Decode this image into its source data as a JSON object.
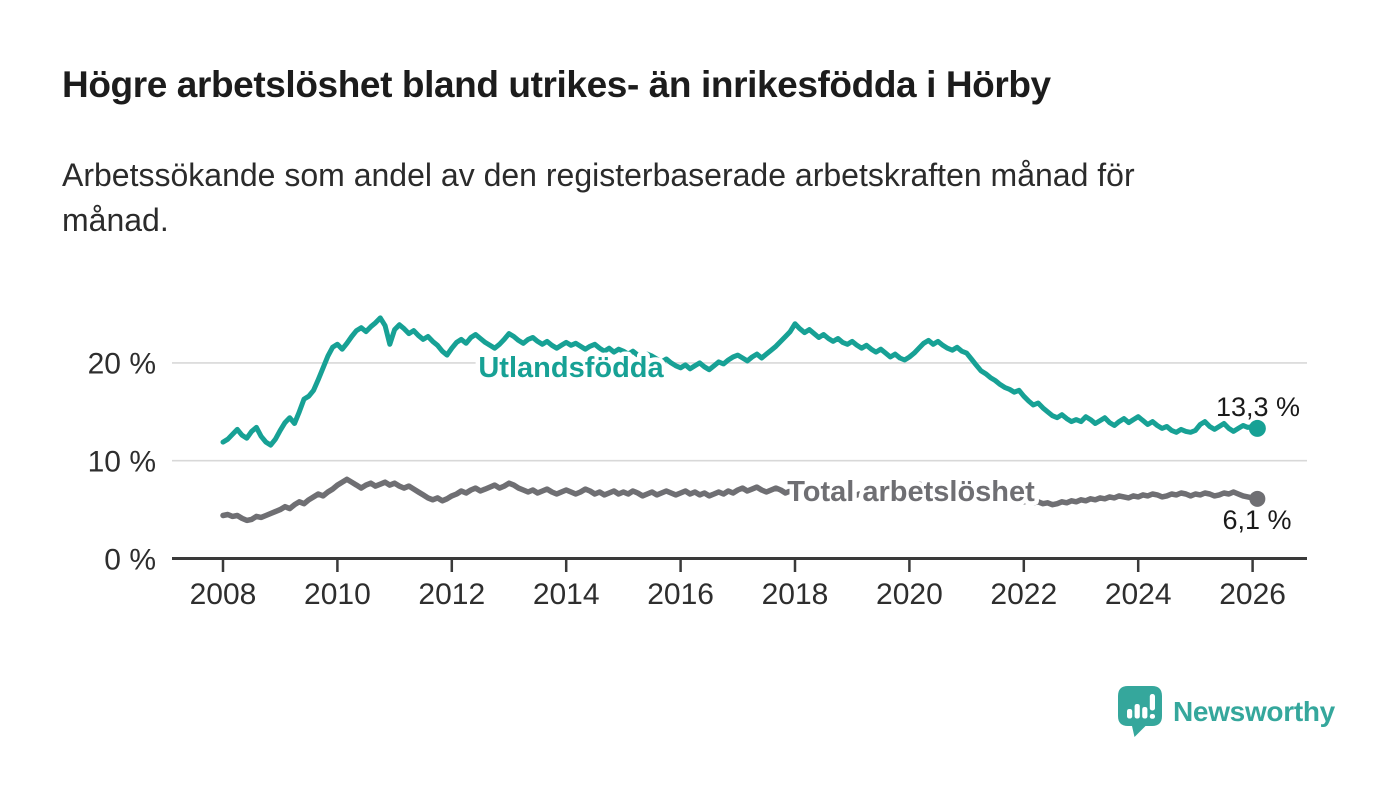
{
  "header": {
    "title": "Högre arbetslöshet bland utrikes- än inrikesfödda i Hörby",
    "subtitle_lines": [
      "Arbetssökande som andel av den registerbaserade arbetskraften månad för",
      "månad."
    ]
  },
  "chart_data": {
    "type": "line",
    "title": "Högre arbetslöshet bland utrikes- än inrikesfödda i Hörby",
    "subtitle": "Arbetssökande som andel av den registerbaserade arbetskraften månad för månad.",
    "x_unit": "month",
    "x_start": "2008-01",
    "x_end": "2026-02",
    "x_ticks": [
      2008,
      2010,
      2012,
      2014,
      2016,
      2018,
      2020,
      2022,
      2024,
      2026
    ],
    "y_ticks": [
      {
        "value": 0,
        "label": "0 %"
      },
      {
        "value": 10,
        "label": "10 %"
      },
      {
        "value": 20,
        "label": "20 %"
      }
    ],
    "ylim": [
      0,
      27.5
    ],
    "grid": "horizontal",
    "legend_position": "inline-labels",
    "colors": {
      "grid": "#d8d8d8",
      "axis": "#3a3a3a",
      "tick_text": "#2e2e2e",
      "value_label_text": "#1a1a1a",
      "halo": "#ffffff"
    },
    "series": [
      {
        "name": "Utlandsfödda",
        "color": "#17a195",
        "end_value": 13.3,
        "end_label": "13,3 %",
        "values": [
          11.9,
          12.2,
          12.7,
          13.2,
          12.6,
          12.3,
          13.0,
          13.4,
          12.5,
          11.9,
          11.6,
          12.2,
          13.1,
          13.9,
          14.4,
          13.8,
          15.0,
          16.3,
          16.6,
          17.2,
          18.3,
          19.5,
          20.7,
          21.6,
          21.9,
          21.4,
          22.0,
          22.7,
          23.3,
          23.6,
          23.2,
          23.7,
          24.1,
          24.6,
          23.8,
          21.9,
          23.4,
          23.9,
          23.5,
          23.0,
          23.3,
          22.8,
          22.4,
          22.7,
          22.2,
          21.8,
          21.2,
          20.8,
          21.5,
          22.1,
          22.4,
          22.0,
          22.6,
          22.9,
          22.5,
          22.1,
          21.8,
          21.5,
          21.9,
          22.4,
          23.0,
          22.7,
          22.3,
          22.0,
          22.4,
          22.6,
          22.2,
          21.9,
          22.2,
          21.8,
          21.5,
          21.8,
          22.1,
          21.8,
          22.0,
          21.7,
          21.4,
          21.7,
          21.9,
          21.5,
          21.2,
          21.5,
          21.1,
          21.4,
          21.2,
          20.9,
          21.2,
          20.8,
          20.6,
          20.9,
          20.7,
          20.4,
          20.1,
          20.4,
          20.0,
          19.7,
          19.5,
          19.8,
          19.4,
          19.7,
          20.0,
          19.6,
          19.3,
          19.7,
          20.1,
          19.9,
          20.3,
          20.6,
          20.8,
          20.5,
          20.2,
          20.6,
          20.9,
          20.5,
          20.9,
          21.3,
          21.7,
          22.2,
          22.7,
          23.2,
          24.0,
          23.5,
          23.1,
          23.4,
          23.0,
          22.6,
          22.9,
          22.5,
          22.2,
          22.5,
          22.1,
          21.9,
          22.2,
          21.8,
          21.5,
          21.8,
          21.4,
          21.1,
          21.4,
          21.0,
          20.6,
          20.9,
          20.5,
          20.3,
          20.6,
          21.0,
          21.5,
          22.0,
          22.3,
          21.9,
          22.2,
          21.8,
          21.5,
          21.3,
          21.6,
          21.2,
          21.0,
          20.4,
          19.8,
          19.2,
          18.9,
          18.5,
          18.2,
          17.8,
          17.5,
          17.3,
          17.0,
          17.2,
          16.6,
          16.1,
          15.7,
          15.9,
          15.4,
          15.0,
          14.6,
          14.4,
          14.7,
          14.3,
          14.0,
          14.2,
          14.0,
          14.5,
          14.2,
          13.8,
          14.1,
          14.4,
          13.9,
          13.6,
          14.0,
          14.3,
          13.9,
          14.2,
          14.5,
          14.1,
          13.7,
          14.0,
          13.6,
          13.3,
          13.5,
          13.1,
          12.9,
          13.2,
          13.0,
          12.9,
          13.1,
          13.7,
          14.0,
          13.5,
          13.2,
          13.5,
          13.8,
          13.3,
          13.0,
          13.3,
          13.6,
          13.4,
          13.5,
          13.3
        ]
      },
      {
        "name": "Total arbetslöshet",
        "color": "#6f6f73",
        "end_value": 6.1,
        "end_label": "6,1 %",
        "values": [
          4.4,
          4.5,
          4.3,
          4.4,
          4.1,
          3.9,
          4.0,
          4.3,
          4.2,
          4.4,
          4.6,
          4.8,
          5.0,
          5.3,
          5.1,
          5.5,
          5.8,
          5.6,
          6.0,
          6.3,
          6.6,
          6.4,
          6.8,
          7.1,
          7.5,
          7.8,
          8.1,
          7.8,
          7.5,
          7.2,
          7.5,
          7.7,
          7.4,
          7.6,
          7.8,
          7.5,
          7.7,
          7.4,
          7.2,
          7.4,
          7.1,
          6.8,
          6.5,
          6.2,
          6.0,
          6.2,
          5.9,
          6.1,
          6.4,
          6.6,
          6.9,
          6.7,
          7.0,
          7.2,
          6.9,
          7.1,
          7.3,
          7.5,
          7.2,
          7.4,
          7.7,
          7.5,
          7.2,
          7.0,
          6.8,
          7.0,
          6.7,
          6.9,
          7.1,
          6.8,
          6.6,
          6.8,
          7.0,
          6.8,
          6.6,
          6.8,
          7.1,
          6.9,
          6.6,
          6.8,
          6.5,
          6.7,
          6.9,
          6.6,
          6.8,
          6.6,
          6.9,
          6.7,
          6.4,
          6.6,
          6.8,
          6.5,
          6.7,
          6.9,
          6.7,
          6.5,
          6.7,
          6.9,
          6.6,
          6.8,
          6.5,
          6.7,
          6.4,
          6.6,
          6.8,
          6.6,
          6.9,
          6.7,
          7.0,
          7.2,
          6.9,
          7.1,
          7.3,
          7.0,
          6.8,
          7.0,
          7.2,
          7.0,
          6.7,
          6.9,
          7.1,
          6.9,
          6.6,
          6.8,
          6.5,
          6.7,
          6.4,
          6.2,
          6.4,
          6.1,
          6.3,
          6.5,
          6.3,
          6.5,
          6.7,
          6.4,
          6.6,
          6.8,
          6.6,
          6.9,
          7.1,
          6.8,
          7.0,
          7.2,
          7.3,
          7.5,
          7.6,
          7.5,
          7.4,
          7.2,
          7.3,
          7.1,
          7.0,
          6.9,
          6.8,
          6.7,
          6.6,
          6.8,
          6.5,
          6.3,
          6.1,
          6.3,
          6.0,
          6.2,
          5.9,
          6.1,
          5.8,
          6.0,
          5.8,
          5.9,
          5.7,
          5.8,
          5.6,
          5.7,
          5.5,
          5.6,
          5.8,
          5.7,
          5.9,
          5.8,
          6.0,
          5.9,
          6.1,
          6.0,
          6.2,
          6.1,
          6.3,
          6.2,
          6.4,
          6.3,
          6.2,
          6.4,
          6.3,
          6.5,
          6.4,
          6.6,
          6.5,
          6.3,
          6.4,
          6.6,
          6.5,
          6.7,
          6.6,
          6.4,
          6.6,
          6.5,
          6.7,
          6.6,
          6.4,
          6.5,
          6.7,
          6.6,
          6.8,
          6.6,
          6.4,
          6.3,
          6.2,
          6.1
        ]
      }
    ]
  },
  "branding": {
    "wordmark": "Newsworthy",
    "logo_color": "#35a79c"
  }
}
